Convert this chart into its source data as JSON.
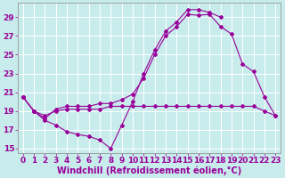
{
  "xlabel": "Windchill (Refroidissement éolien,°C)",
  "x_values": [
    0,
    1,
    2,
    3,
    4,
    5,
    6,
    7,
    8,
    9,
    10,
    11,
    12,
    13,
    14,
    15,
    16,
    17,
    18,
    19,
    20,
    21,
    22,
    23
  ],
  "line1_y": [
    20.5,
    19.0,
    18.5,
    19.0,
    19.2,
    19.2,
    19.2,
    19.2,
    19.5,
    19.5,
    19.5,
    19.5,
    19.5,
    19.5,
    19.5,
    19.5,
    19.5,
    19.5,
    19.5,
    19.5,
    19.5,
    19.5,
    19.0,
    18.5
  ],
  "line2_y": [
    20.5,
    19.0,
    18.0,
    17.5,
    16.8,
    16.5,
    16.3,
    15.9,
    15.0,
    17.5,
    20.0,
    23.0,
    25.5,
    27.5,
    28.5,
    29.8,
    29.8,
    29.5,
    29.0,
    null,
    null,
    null,
    null,
    null
  ],
  "line3_y": [
    20.5,
    19.0,
    18.2,
    19.2,
    19.5,
    19.5,
    19.5,
    19.8,
    19.8,
    20.2,
    20.8,
    22.5,
    25.0,
    27.0,
    28.0,
    29.3,
    29.2,
    29.3,
    28.0,
    27.2,
    24.0,
    23.2,
    20.5,
    18.5
  ],
  "ylim": [
    14.5,
    30.5
  ],
  "yticks": [
    15,
    17,
    19,
    21,
    23,
    25,
    27,
    29
  ],
  "bg_color": "#c8ecec",
  "line_color": "#990099",
  "grid_color": "#ffffff",
  "xlabel_fontsize": 7,
  "tick_fontsize": 6.5
}
